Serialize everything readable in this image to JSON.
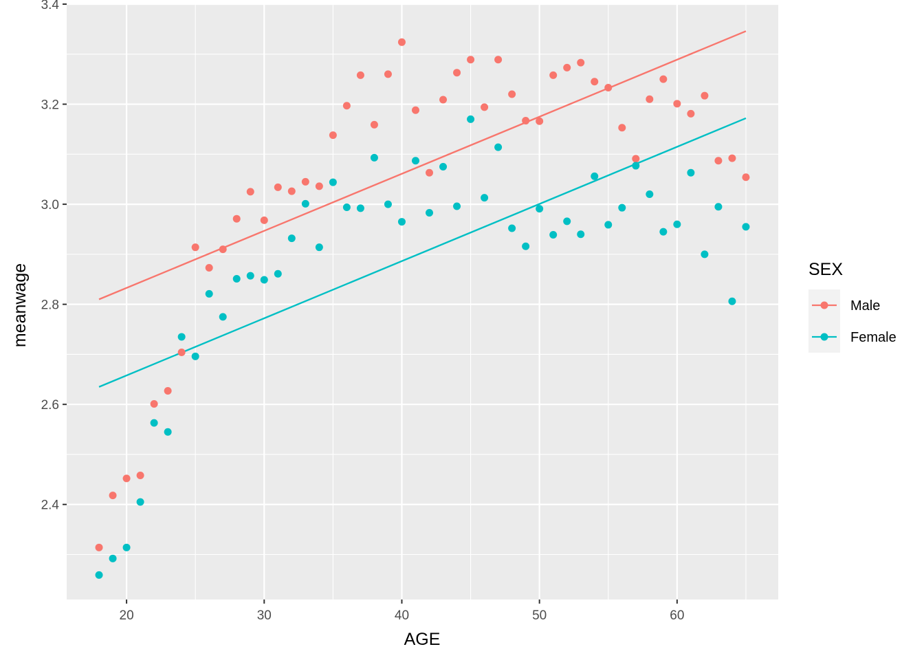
{
  "chart_data": {
    "type": "scatter",
    "title": "",
    "xlabel": "AGE",
    "ylabel": "meanwage",
    "xlim": [
      15.65,
      67.35
    ],
    "ylim": [
      2.21,
      3.4
    ],
    "x_ticks": [
      20,
      30,
      40,
      50,
      60
    ],
    "y_ticks": [
      2.4,
      2.6,
      2.8,
      3.0,
      3.2,
      3.4
    ],
    "y_tick_labels": [
      "2.4",
      "2.6",
      "2.8",
      "3.0",
      "3.2",
      "3.4"
    ],
    "grid": true,
    "legend": {
      "title": "SEX",
      "position": "right",
      "entries": [
        "Male",
        "Female"
      ]
    },
    "series": [
      {
        "name": "Male",
        "color": "#F8766D",
        "x": [
          18,
          19,
          20,
          21,
          22,
          23,
          24,
          25,
          26,
          27,
          28,
          29,
          30,
          31,
          32,
          33,
          34,
          35,
          36,
          37,
          38,
          39,
          40,
          41,
          42,
          43,
          44,
          45,
          46,
          47,
          48,
          49,
          50,
          51,
          52,
          53,
          54,
          55,
          56,
          57,
          58,
          59,
          60,
          61,
          62,
          63,
          64,
          65
        ],
        "y": [
          2.314,
          2.418,
          2.452,
          2.458,
          2.601,
          2.627,
          2.704,
          2.914,
          2.873,
          2.91,
          2.971,
          3.025,
          2.968,
          3.034,
          3.026,
          3.045,
          3.036,
          3.138,
          3.197,
          3.258,
          3.159,
          3.26,
          3.324,
          3.188,
          3.063,
          3.209,
          3.263,
          3.289,
          3.194,
          3.289,
          3.22,
          3.167,
          3.166,
          3.258,
          3.273,
          3.283,
          3.245,
          3.233,
          3.153,
          3.091,
          3.21,
          3.25,
          3.201,
          3.181,
          3.217,
          3.087,
          3.092,
          3.054
        ],
        "fit_line": {
          "x": [
            18,
            65
          ],
          "y": [
            2.81,
            3.346
          ]
        }
      },
      {
        "name": "Female",
        "color": "#00BFC4",
        "x": [
          18,
          19,
          20,
          21,
          22,
          23,
          24,
          25,
          26,
          27,
          28,
          29,
          30,
          31,
          32,
          33,
          34,
          35,
          36,
          37,
          38,
          39,
          40,
          41,
          42,
          43,
          44,
          45,
          46,
          47,
          48,
          49,
          50,
          51,
          52,
          53,
          54,
          55,
          56,
          57,
          58,
          59,
          60,
          61,
          62,
          63,
          64,
          65
        ],
        "y": [
          2.259,
          2.292,
          2.314,
          2.405,
          2.563,
          2.545,
          2.735,
          2.696,
          2.821,
          2.775,
          2.851,
          2.857,
          2.849,
          2.861,
          2.932,
          3.001,
          2.914,
          3.044,
          2.994,
          2.992,
          3.093,
          3.0,
          2.965,
          3.087,
          2.983,
          3.075,
          2.996,
          3.17,
          3.013,
          3.114,
          2.952,
          2.916,
          2.991,
          2.939,
          2.966,
          2.94,
          3.056,
          2.959,
          2.993,
          3.077,
          3.02,
          2.945,
          2.96,
          3.063,
          2.9,
          2.995,
          2.806,
          2.955
        ],
        "fit_line": {
          "x": [
            18,
            65
          ],
          "y": [
            2.635,
            3.172
          ]
        }
      }
    ]
  }
}
